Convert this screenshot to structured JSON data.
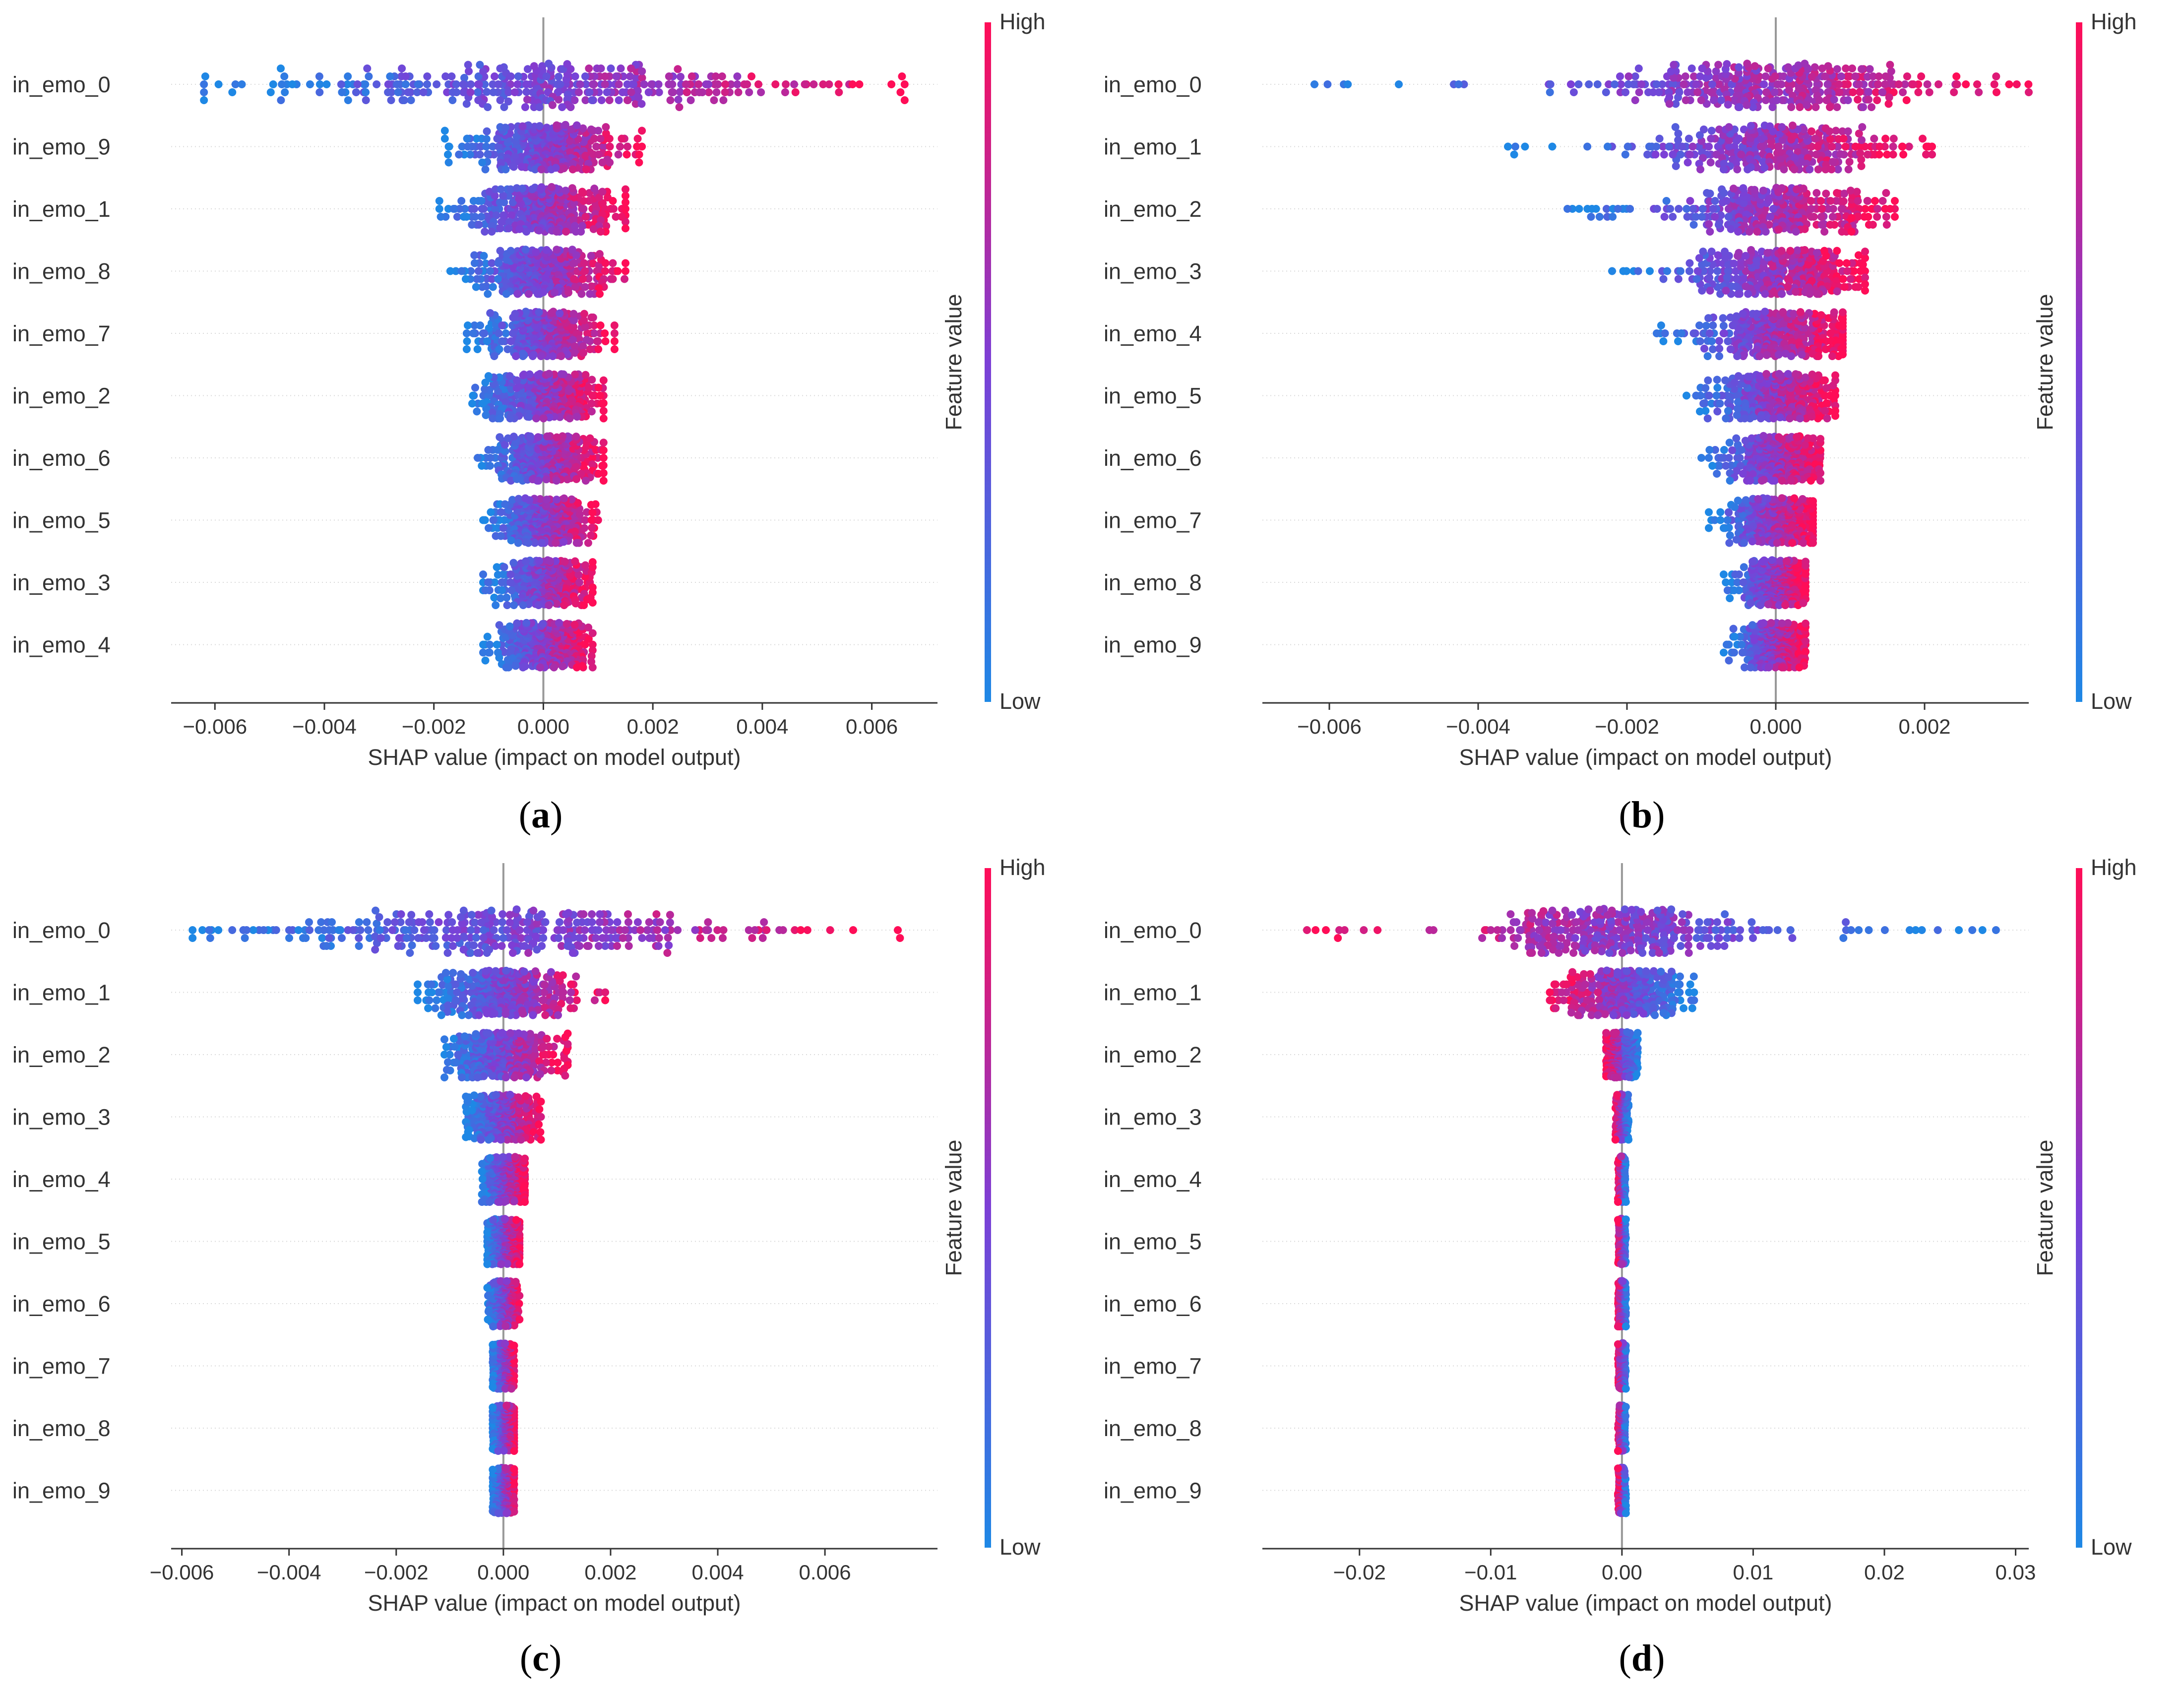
{
  "colors": {
    "low": "#1e88e5",
    "mid": "#7c3fd6",
    "high": "#ff0d57",
    "axis": "#333333",
    "zero_line": "#999999",
    "grid": "#d9d9d9"
  },
  "colorbar": {
    "high_label": "High",
    "low_label": "Low",
    "title": "Feature value"
  },
  "panels": [
    {
      "caption_letter": "a",
      "chart_data": {
        "type": "scatter",
        "subtype": "shap-beeswarm",
        "xlabel": "SHAP value (impact on model output)",
        "xlim": [
          -0.0068,
          0.0072
        ],
        "xticks": [
          -0.006,
          -0.004,
          -0.002,
          0.0,
          0.002,
          0.004,
          0.006
        ],
        "tick_labels": [
          "−0.006",
          "−0.004",
          "−0.002",
          "0.000",
          "0.002",
          "0.004",
          "0.006"
        ],
        "features": [
          {
            "name": "in_emo_0",
            "min": -0.0062,
            "max": 0.0066,
            "spread": 0.0022
          },
          {
            "name": "in_emo_9",
            "min": -0.0018,
            "max": 0.0018,
            "spread": 0.0007
          },
          {
            "name": "in_emo_1",
            "min": -0.0019,
            "max": 0.0015,
            "spread": 0.0007
          },
          {
            "name": "in_emo_8",
            "min": -0.0017,
            "max": 0.0015,
            "spread": 0.0006
          },
          {
            "name": "in_emo_7",
            "min": -0.0014,
            "max": 0.0013,
            "spread": 0.0005
          },
          {
            "name": "in_emo_2",
            "min": -0.0013,
            "max": 0.0011,
            "spread": 0.0005
          },
          {
            "name": "in_emo_6",
            "min": -0.0012,
            "max": 0.0011,
            "spread": 0.0005
          },
          {
            "name": "in_emo_5",
            "min": -0.0011,
            "max": 0.001,
            "spread": 0.0004
          },
          {
            "name": "in_emo_3",
            "min": -0.0011,
            "max": 0.0009,
            "spread": 0.0004
          },
          {
            "name": "in_emo_4",
            "min": -0.0011,
            "max": 0.0009,
            "spread": 0.0004
          }
        ],
        "color_direction": "low-left"
      }
    },
    {
      "caption_letter": "b",
      "chart_data": {
        "type": "scatter",
        "subtype": "shap-beeswarm",
        "xlabel": "SHAP value (impact on model output)",
        "xlim": [
          -0.0069,
          0.0034
        ],
        "xticks": [
          -0.006,
          -0.004,
          -0.002,
          0.0,
          0.002
        ],
        "tick_labels": [
          "−0.006",
          "−0.004",
          "−0.002",
          "0.000",
          "0.002"
        ],
        "features": [
          {
            "name": "in_emo_0",
            "min": -0.0062,
            "max": 0.0034,
            "spread": 0.0012
          },
          {
            "name": "in_emo_1",
            "min": -0.0036,
            "max": 0.0021,
            "spread": 0.0008
          },
          {
            "name": "in_emo_2",
            "min": -0.0028,
            "max": 0.0016,
            "spread": 0.0007
          },
          {
            "name": "in_emo_3",
            "min": -0.0022,
            "max": 0.0012,
            "spread": 0.0006
          },
          {
            "name": "in_emo_4",
            "min": -0.0016,
            "max": 0.0009,
            "spread": 0.0005
          },
          {
            "name": "in_emo_5",
            "min": -0.0012,
            "max": 0.0008,
            "spread": 0.0004
          },
          {
            "name": "in_emo_6",
            "min": -0.001,
            "max": 0.0006,
            "spread": 0.0003
          },
          {
            "name": "in_emo_7",
            "min": -0.0009,
            "max": 0.0005,
            "spread": 0.0003
          },
          {
            "name": "in_emo_8",
            "min": -0.0007,
            "max": 0.0004,
            "spread": 0.0002
          },
          {
            "name": "in_emo_9",
            "min": -0.0007,
            "max": 0.0004,
            "spread": 0.0002
          }
        ],
        "color_direction": "low-left"
      }
    },
    {
      "caption_letter": "c",
      "chart_data": {
        "type": "scatter",
        "subtype": "shap-beeswarm",
        "xlabel": "SHAP value (impact on model output)",
        "xlim": [
          -0.0062,
          0.0081
        ],
        "xticks": [
          -0.006,
          -0.004,
          -0.002,
          0.0,
          0.002,
          0.004,
          0.006
        ],
        "tick_labels": [
          "−0.006",
          "−0.004",
          "−0.002",
          "0.000",
          "0.002",
          "0.004",
          "0.006"
        ],
        "features": [
          {
            "name": "in_emo_0",
            "min": -0.0058,
            "max": 0.0074,
            "spread": 0.0022
          },
          {
            "name": "in_emo_1",
            "min": -0.0016,
            "max": 0.0019,
            "spread": 0.0006
          },
          {
            "name": "in_emo_2",
            "min": -0.0011,
            "max": 0.0012,
            "spread": 0.0005
          },
          {
            "name": "in_emo_3",
            "min": -0.0007,
            "max": 0.0007,
            "spread": 0.0003
          },
          {
            "name": "in_emo_4",
            "min": -0.0004,
            "max": 0.0004,
            "spread": 0.0002
          },
          {
            "name": "in_emo_5",
            "min": -0.0003,
            "max": 0.0003,
            "spread": 0.00015
          },
          {
            "name": "in_emo_6",
            "min": -0.0003,
            "max": 0.0003,
            "spread": 0.00012
          },
          {
            "name": "in_emo_7",
            "min": -0.0002,
            "max": 0.0002,
            "spread": 0.0001
          },
          {
            "name": "in_emo_8",
            "min": -0.0002,
            "max": 0.0002,
            "spread": 0.0001
          },
          {
            "name": "in_emo_9",
            "min": -0.0002,
            "max": 0.0002,
            "spread": 0.0001
          }
        ],
        "color_direction": "low-left"
      }
    },
    {
      "caption_letter": "d",
      "chart_data": {
        "type": "scatter",
        "subtype": "shap-beeswarm",
        "xlabel": "SHAP value (impact on model output)",
        "xlim": [
          -0.0274,
          0.031
        ],
        "xticks": [
          -0.02,
          -0.01,
          0.0,
          0.01,
          0.02,
          0.03
        ],
        "tick_labels": [
          "−0.02",
          "−0.01",
          "0.00",
          "0.01",
          "0.02",
          "0.03"
        ],
        "features": [
          {
            "name": "in_emo_0",
            "min": -0.024,
            "max": 0.0285,
            "spread": 0.005
          },
          {
            "name": "in_emo_1",
            "min": -0.0055,
            "max": 0.0055,
            "spread": 0.002
          },
          {
            "name": "in_emo_2",
            "min": -0.0012,
            "max": 0.0012,
            "spread": 0.0006
          },
          {
            "name": "in_emo_3",
            "min": -0.0005,
            "max": 0.0005,
            "spread": 0.0002
          },
          {
            "name": "in_emo_4",
            "min": -0.0003,
            "max": 0.0003,
            "spread": 0.0001
          },
          {
            "name": "in_emo_5",
            "min": -0.0003,
            "max": 0.0003,
            "spread": 0.0001
          },
          {
            "name": "in_emo_6",
            "min": -0.0003,
            "max": 0.0003,
            "spread": 0.0001
          },
          {
            "name": "in_emo_7",
            "min": -0.0003,
            "max": 0.0003,
            "spread": 0.0001
          },
          {
            "name": "in_emo_8",
            "min": -0.0003,
            "max": 0.0003,
            "spread": 0.0001
          },
          {
            "name": "in_emo_9",
            "min": -0.0003,
            "max": 0.0003,
            "spread": 0.0001
          }
        ],
        "color_direction": "low-right"
      }
    }
  ]
}
